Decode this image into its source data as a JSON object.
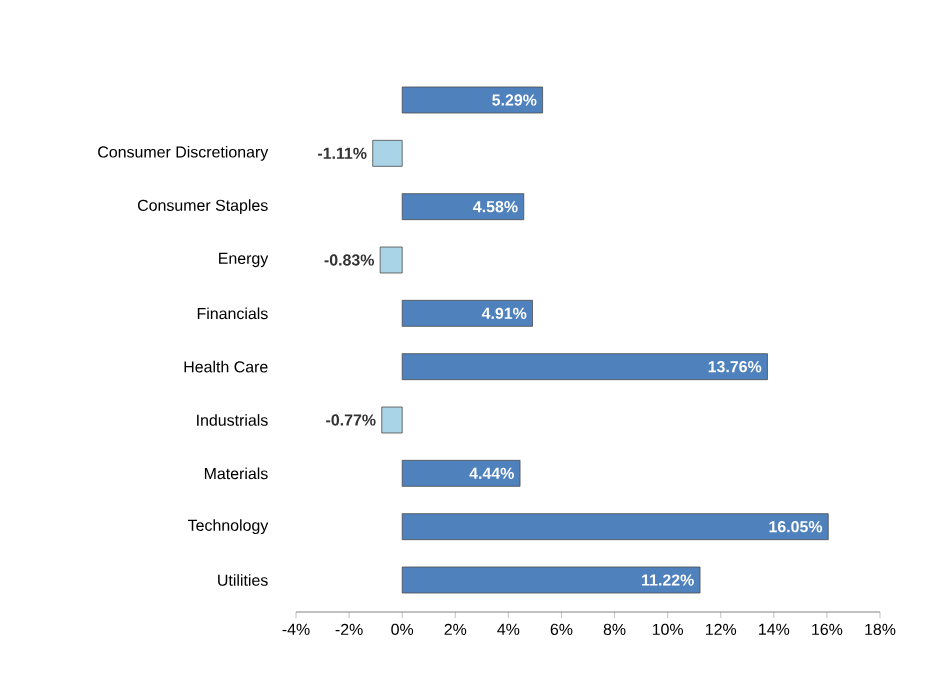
{
  "chart_data": {
    "type": "bar",
    "orientation": "horizontal",
    "categories": [
      null,
      "Consumer Discretionary",
      "Consumer Staples",
      "Energy",
      "Financials",
      "Health Care",
      "Industrials",
      "Materials",
      "Technology",
      "Utilities"
    ],
    "values": [
      5.29,
      -1.11,
      4.58,
      -0.83,
      4.91,
      13.76,
      -0.77,
      4.44,
      16.05,
      11.22
    ],
    "value_labels": [
      "5.29%",
      "-1.11%",
      "4.58%",
      "-0.83%",
      "4.91%",
      "13.76%",
      "-0.77%",
      "4.44%",
      "16.05%",
      "11.22%"
    ],
    "colors": [
      "#4f81bd",
      "#a9d3e6",
      "#4f81bd",
      "#a9d3e6",
      "#4f81bd",
      "#4f81bd",
      "#a9d3e6",
      "#4f81bd",
      "#4f81bd",
      "#4f81bd"
    ],
    "xlim": [
      -4,
      18
    ],
    "xticks": [
      {
        "value": -4,
        "label": "-4%"
      },
      {
        "value": -2,
        "label": "-2%"
      },
      {
        "value": 0,
        "label": "0%"
      },
      {
        "value": 2,
        "label": "2%"
      },
      {
        "value": 4,
        "label": "4%"
      },
      {
        "value": 6,
        "label": "6%"
      },
      {
        "value": 8,
        "label": "8%"
      },
      {
        "value": 10,
        "label": "10%"
      },
      {
        "value": 12,
        "label": "12%"
      },
      {
        "value": 14,
        "label": "14%"
      },
      {
        "value": 16,
        "label": "16%"
      },
      {
        "value": 18,
        "label": "18%"
      }
    ],
    "grid": false
  }
}
